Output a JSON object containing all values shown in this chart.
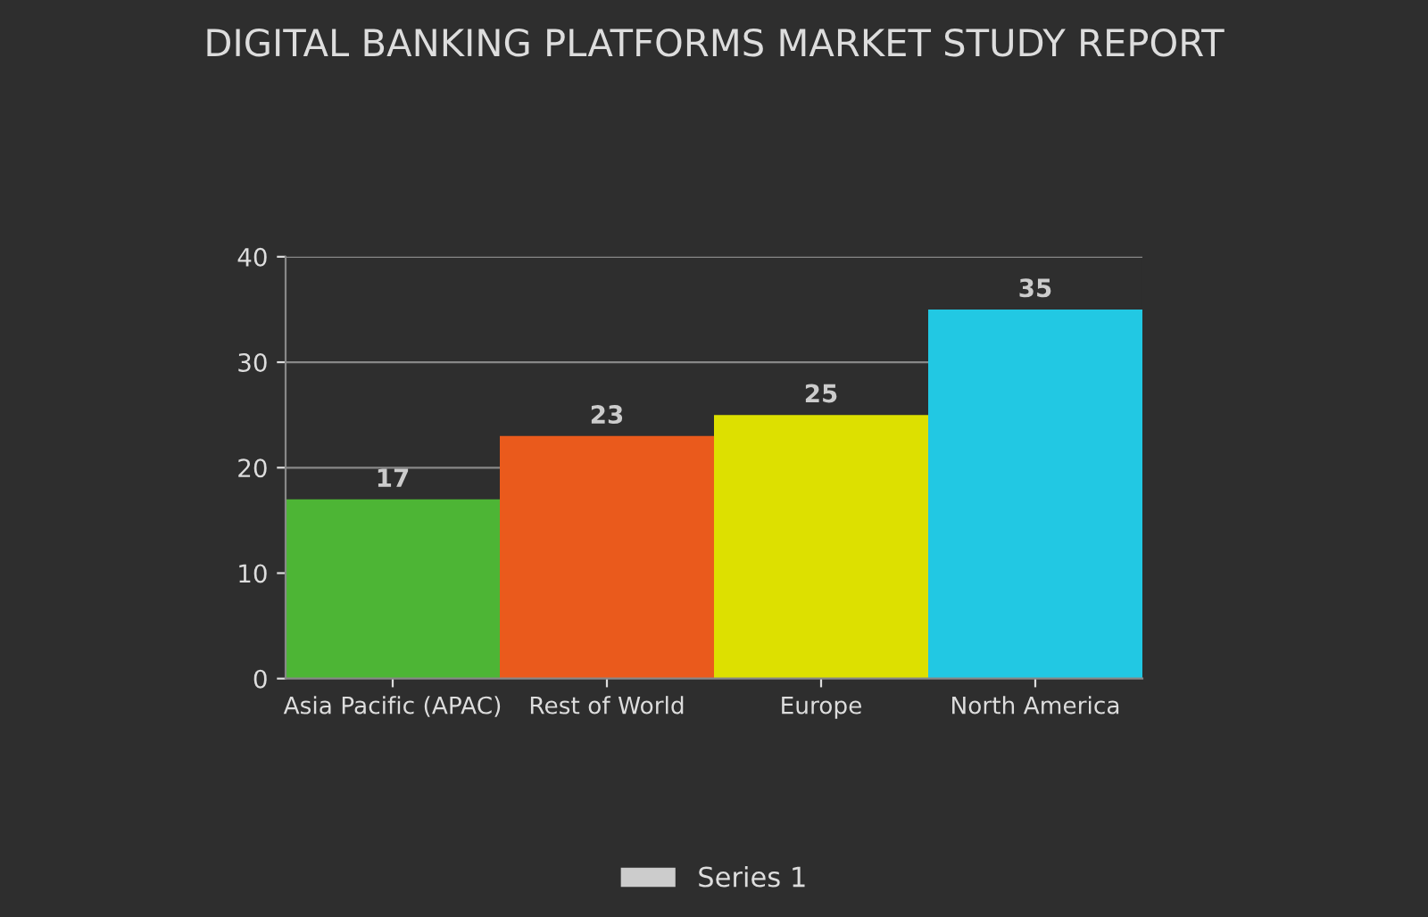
{
  "chart_data": {
    "type": "bar",
    "title": "DIGITAL BANKING PLATFORMS MARKET STUDY REPORT",
    "categories": [
      "Asia Pacific (APAC)",
      "Rest of World",
      "Europe",
      "North America"
    ],
    "series": [
      {
        "name": "Series 1",
        "color": "#cccccc",
        "colors": [
          "#4db535",
          "#ea5a1c",
          "#dde000",
          "#22c8e3"
        ],
        "values": [
          17,
          23,
          25,
          35
        ]
      }
    ],
    "ylim": [
      0,
      40
    ],
    "yticks": [
      0,
      10,
      20,
      30,
      40
    ],
    "grid": "y",
    "data_labels": true,
    "legend": "bottom"
  }
}
